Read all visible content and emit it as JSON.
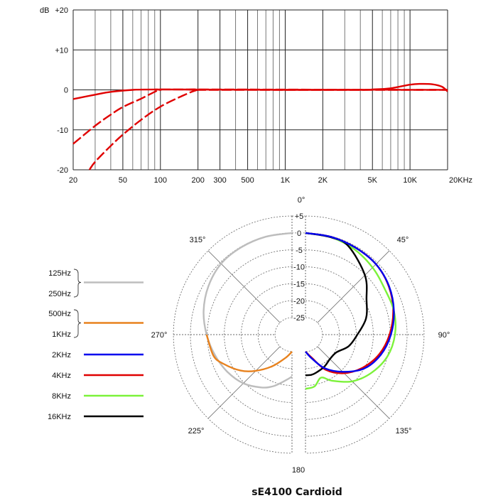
{
  "chart_data": [
    {
      "type": "line",
      "xscale": "log",
      "xlim": [
        20,
        20000
      ],
      "ylim": [
        -20,
        20
      ],
      "ylabel_unit": "dB",
      "grid": true,
      "ytick_labels": [
        "+20",
        "+10",
        "0",
        "-10",
        "-20"
      ],
      "yticks": [
        20,
        10,
        0,
        -10,
        -20
      ],
      "xticks": [
        20,
        50,
        100,
        200,
        300,
        500,
        1000,
        2000,
        5000,
        10000,
        20000
      ],
      "xtick_labels": [
        "20",
        "50",
        "100",
        "200",
        "300",
        "500",
        "1K",
        "2K",
        "5K",
        "10K",
        "20KHz"
      ],
      "color": "#e00000",
      "series": [
        {
          "style": "solid",
          "x": [
            20,
            30,
            40,
            60,
            100,
            1000,
            4000,
            5000,
            7000,
            10000,
            12000,
            15000,
            18000,
            20000
          ],
          "y": [
            -2.3,
            -1.2,
            -0.5,
            0,
            0.1,
            0,
            0,
            0.1,
            0.4,
            1.3,
            1.5,
            1.4,
            0.8,
            -0.4
          ]
        },
        {
          "style": "dashed",
          "x": [
            20,
            30,
            40,
            50,
            70,
            90,
            100,
            150,
            20000
          ],
          "y": [
            -13.5,
            -9,
            -6.2,
            -4.3,
            -2.2,
            -0.5,
            0,
            0.1,
            0
          ]
        },
        {
          "style": "dashed",
          "x": [
            27,
            30,
            40,
            50,
            70,
            100,
            150,
            200,
            250,
            20000
          ],
          "y": [
            -20,
            -18,
            -14,
            -11.2,
            -7.5,
            -4.2,
            -1.5,
            0,
            0,
            0
          ]
        }
      ]
    },
    {
      "type": "polar",
      "title": "sE4100 Cardioid",
      "rlim": [
        -30,
        5
      ],
      "r_tick_labels": [
        "+5",
        "0",
        "-5",
        "-10",
        "-15",
        "-20",
        "-25"
      ],
      "r_ticks": [
        5,
        0,
        -5,
        -10,
        -15,
        -20,
        -25
      ],
      "angle_labels": {
        "a0": "0°",
        "a45": "45°",
        "a90": "90°",
        "a135": "135°",
        "a180": "180",
        "a225": "225°",
        "a270": "270°",
        "a315": "315°"
      },
      "legend": {
        "placement": "left",
        "groups": [
          {
            "labels": [
              "125Hz",
              "250Hz"
            ],
            "color": "#bdbdbd"
          },
          {
            "labels": [
              "500Hz",
              "1KHz"
            ],
            "color": "#e8821e"
          },
          {
            "labels": [
              "2KHz"
            ],
            "color": "#0000ee"
          },
          {
            "labels": [
              "4KHz"
            ],
            "color": "#e00000"
          },
          {
            "labels": [
              "8KHz"
            ],
            "color": "#7cf23a"
          },
          {
            "labels": [
              "16KHz"
            ],
            "color": "#000000"
          }
        ]
      },
      "series": [
        {
          "name": "125Hz / 250Hz",
          "color": "#bdbdbd",
          "side": "left",
          "angle": [
            360,
            345,
            330,
            315,
            300,
            285,
            270,
            255,
            240,
            225,
            210,
            200,
            190,
            180
          ],
          "db": [
            0,
            -0.1,
            -0.2,
            -0.4,
            -1.5,
            -3,
            -4.8,
            -6.5,
            -8,
            -9.7,
            -12,
            -13.8,
            -16,
            -17.6
          ]
        },
        {
          "name": "500Hz / 1KHz",
          "color": "#e8821e",
          "side": "left",
          "angle": [
            270,
            255,
            247,
            235,
            225,
            212,
            195,
            180
          ],
          "db": [
            -4.8,
            -6,
            -8,
            -11.5,
            -14.9,
            -19,
            -23,
            -25
          ]
        },
        {
          "name": "4KHz",
          "color": "#e00000",
          "side": "right",
          "angle": [
            0,
            15,
            30,
            45,
            60,
            75,
            90,
            105,
            120,
            135,
            150,
            165,
            180
          ],
          "db": [
            0,
            -0.2,
            -0.4,
            -0.6,
            -1.6,
            -3.2,
            -5.2,
            -7.5,
            -10.5,
            -13.9,
            -18,
            -23,
            -25
          ]
        },
        {
          "name": "8KHz",
          "color": "#7cf23a",
          "side": "right",
          "angle": [
            0,
            15,
            30,
            45,
            60,
            75,
            90,
            105,
            120,
            135,
            150,
            160,
            170,
            180
          ],
          "db": [
            0,
            -0.3,
            -1,
            -2,
            -3,
            -3,
            -3.6,
            -5,
            -7.5,
            -10.5,
            -14.3,
            -16.5,
            -14.5,
            -14
          ]
        },
        {
          "name": "16KHz",
          "color": "#000000",
          "side": "right",
          "angle": [
            0,
            15,
            26,
            45,
            60,
            75,
            90,
            105,
            120,
            135,
            150,
            165,
            172,
            180
          ],
          "db": [
            0,
            -0.3,
            -1,
            -5.2,
            -9.2,
            -11.5,
            -14.7,
            -16.8,
            -19.5,
            -19.8,
            -19,
            -18.3,
            -18,
            -18
          ]
        },
        {
          "name": "2KHz",
          "color": "#0000ee",
          "side": "right",
          "angle": [
            0,
            15,
            30,
            45,
            60,
            75,
            90,
            105,
            120,
            135,
            150,
            165,
            180
          ],
          "db": [
            0,
            -0.2,
            -0.4,
            -0.6,
            -1.5,
            -3,
            -4.8,
            -7,
            -10,
            -14.5,
            -18.5,
            -22.7,
            -25
          ]
        }
      ]
    }
  ]
}
